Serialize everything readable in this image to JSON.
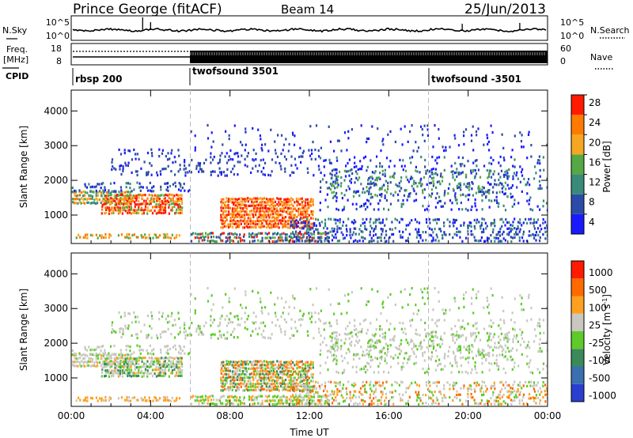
{
  "header": {
    "station": "Prince George (fitACF)",
    "beam": "Beam 14",
    "date": "25/Jun/2013"
  },
  "panels": {
    "sky_label": "N.Sky",
    "search_label": "N.Search",
    "freq_label_1": "Freq.",
    "freq_label_2": "[MHz]",
    "nave_label": "Nave",
    "cpid_label": "CPID",
    "noise_ticks_left": [
      "10^5",
      "10^0"
    ],
    "noise_ticks_right": [
      "10^5",
      "10^0"
    ],
    "freq_ticks": [
      "18",
      "8"
    ],
    "nave_ticks": [
      "60",
      "0"
    ]
  },
  "cpid_segments": [
    {
      "start_hour": 0.0,
      "label": "rbsp 200"
    },
    {
      "start_hour": 6.0,
      "label": "twofsound 3501"
    },
    {
      "start_hour": 18.0,
      "label": "twofsound -3501"
    }
  ],
  "chart_data": [
    {
      "type": "heatmap",
      "name": "power",
      "xlabel": "",
      "ylabel": "Slant Range [km]",
      "xlim": [
        0,
        24
      ],
      "ylim": [
        180,
        4600
      ],
      "yticks": [
        "1000",
        "2000",
        "3000",
        "4000"
      ],
      "colorbar": {
        "label": "Power [dB]",
        "ticks": [
          "4",
          "8",
          "12",
          "16",
          "20",
          "24",
          "28"
        ],
        "colors": [
          "#1a1aff",
          "#2c4ba8",
          "#3a8a7a",
          "#55a844",
          "#f5a623",
          "#ff7a00",
          "#ff1a00"
        ]
      }
    },
    {
      "type": "heatmap",
      "name": "velocity",
      "xlabel": "Time UT",
      "ylabel": "Slant Range [km]",
      "xlim": [
        0,
        24
      ],
      "ylim": [
        180,
        4600
      ],
      "yticks": [
        "1000",
        "2000",
        "3000",
        "4000"
      ],
      "xticks": [
        "00:00",
        "04:00",
        "08:00",
        "12:00",
        "16:00",
        "20:00",
        "00:00"
      ],
      "colorbar": {
        "label": "Velocity [m s",
        "label_sup": "-1",
        "label_close": "]",
        "ticks": [
          "1000",
          "500",
          "100",
          "25",
          "-25",
          "-100",
          "-500",
          "-1000"
        ],
        "colors": [
          "#2a3fd0",
          "#3a6fb0",
          "#3b8a5a",
          "#5ecb2a",
          "#c8c8c0",
          "#ffa020",
          "#ff6a00",
          "#ff1a00"
        ]
      }
    }
  ],
  "colors": {
    "ground_scatter": "#c8c8c0",
    "dash_line": "#bbbbbb"
  }
}
